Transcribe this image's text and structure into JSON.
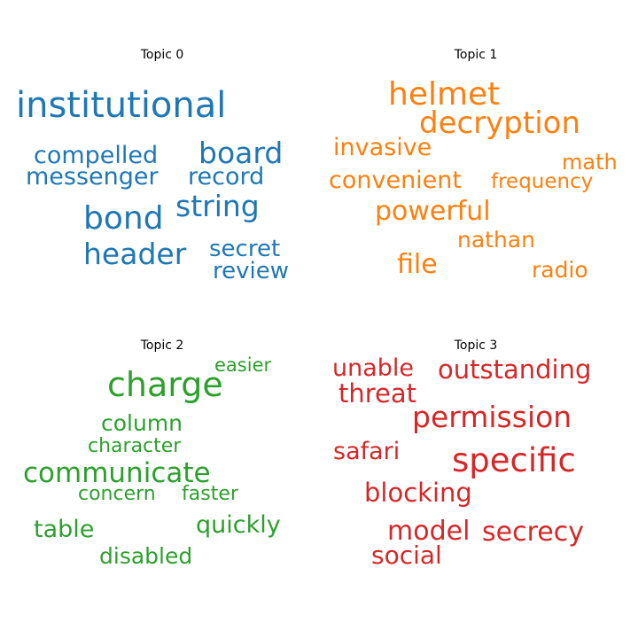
{
  "chart_data": {
    "type": "wordcloud",
    "panels": [
      {
        "title": "Topic 0",
        "color": "#1f77b4",
        "words": [
          "institutional",
          "board",
          "compelled",
          "messenger",
          "record",
          "string",
          "bond",
          "header",
          "secret",
          "review"
        ]
      },
      {
        "title": "Topic 1",
        "color": "#ff7f0e",
        "words": [
          "helmet",
          "decryption",
          "invasive",
          "math",
          "convenient",
          "frequency",
          "powerful",
          "nathan",
          "file",
          "radio"
        ]
      },
      {
        "title": "Topic 2",
        "color": "#2ca02c",
        "words": [
          "easier",
          "charge",
          "column",
          "character",
          "communicate",
          "concern",
          "faster",
          "quickly",
          "table",
          "disabled"
        ]
      },
      {
        "title": "Topic 3",
        "color": "#d62728",
        "words": [
          "unable",
          "outstanding",
          "threat",
          "permission",
          "safari",
          "specific",
          "blocking",
          "model",
          "secrecy",
          "social"
        ]
      }
    ]
  }
}
